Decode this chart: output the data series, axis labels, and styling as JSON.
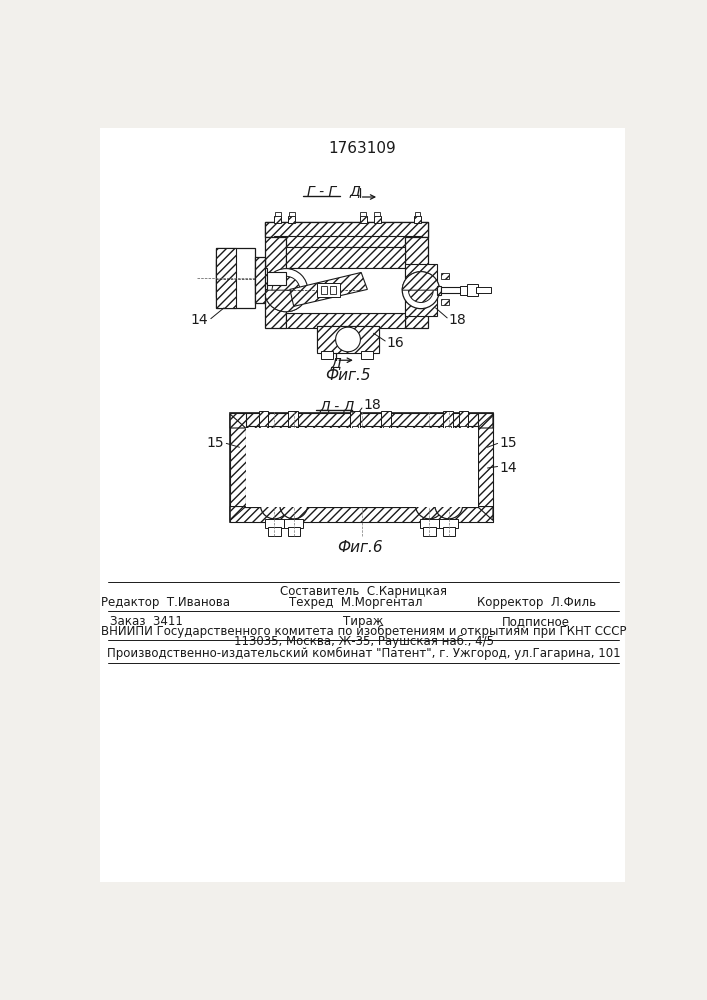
{
  "title": "1763109",
  "title_fontsize": 11,
  "bg_color": "#f2f0ec",
  "line_color": "#1a1a1a",
  "fig5_caption": "Фиг.5",
  "fig6_caption": "Фиг.6",
  "fig5_label_gg": "Г - Г",
  "fig5_label_d_top": "Д",
  "fig5_label_d_bottom": "Д",
  "fig5_label_14": "14",
  "fig5_label_16": "16",
  "fig5_label_18": "18",
  "fig6_label_dd": "Д - Д",
  "fig6_label_18": "18",
  "fig6_label_15a": "15",
  "fig6_label_15b": "15",
  "fig6_label_14": "14",
  "footer_line1_center_top": "Составитель  С.Карницкая",
  "footer_line1_left": "Редактор  Т.Иванова",
  "footer_line1_center_bot": "Техред  М.Моргентал",
  "footer_line1_right": "Корректор  Л.Филь",
  "footer_line2_left": "Заказ  3411",
  "footer_line2_center": "Тираж",
  "footer_line2_right": "Подписное",
  "footer_line3": "ВНИИПИ Государственного комитета по изобретениям и открытиям при ГКНТ СССР",
  "footer_line4": "113035, Москва, Ж-35, Раушская наб., 4/5",
  "footer_line5": "Производственно-издательский комбинат \"Патент\", г. Ужгород, ул.Гагарина, 101",
  "font_size_labels": 9,
  "font_size_footer": 8.5
}
